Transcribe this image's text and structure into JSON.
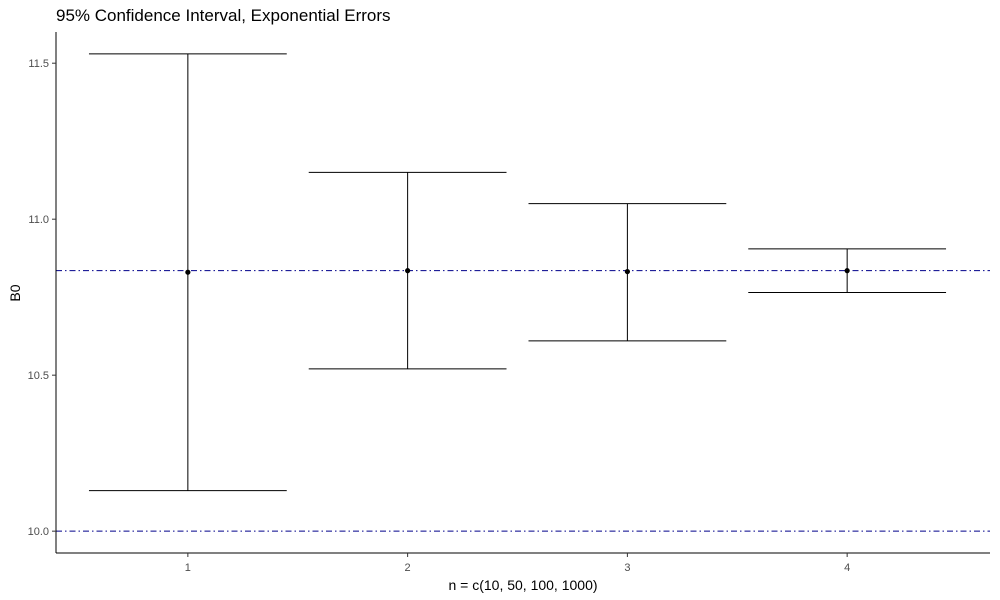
{
  "chart_data": {
    "type": "errorbar",
    "title": "95% Confidence Interval, Exponential Errors",
    "xlabel": "n = c(10, 50, 100, 1000)",
    "ylabel": "B0",
    "x_ticks": [
      "1",
      "2",
      "3",
      "4"
    ],
    "y_ticks": [
      "10.0",
      "10.5",
      "11.0",
      "11.5"
    ],
    "ylim": [
      9.93,
      11.6
    ],
    "xlim": [
      0.4,
      4.65
    ],
    "grid": false,
    "points": [
      {
        "x": 1,
        "estimate": 10.83,
        "lower": 10.13,
        "upper": 11.53
      },
      {
        "x": 2,
        "estimate": 10.835,
        "lower": 10.52,
        "upper": 11.15
      },
      {
        "x": 3,
        "estimate": 10.832,
        "lower": 10.61,
        "upper": 11.05
      },
      {
        "x": 4,
        "estimate": 10.835,
        "lower": 10.765,
        "upper": 10.905
      }
    ],
    "reference_lines": [
      {
        "y": 10.835,
        "color": "#00008b",
        "style": "dash-dot"
      },
      {
        "y": 10.0,
        "color": "#00008b",
        "style": "dash-dot"
      }
    ],
    "colors": {
      "bars": "#000000",
      "reference": "#00008b"
    }
  }
}
